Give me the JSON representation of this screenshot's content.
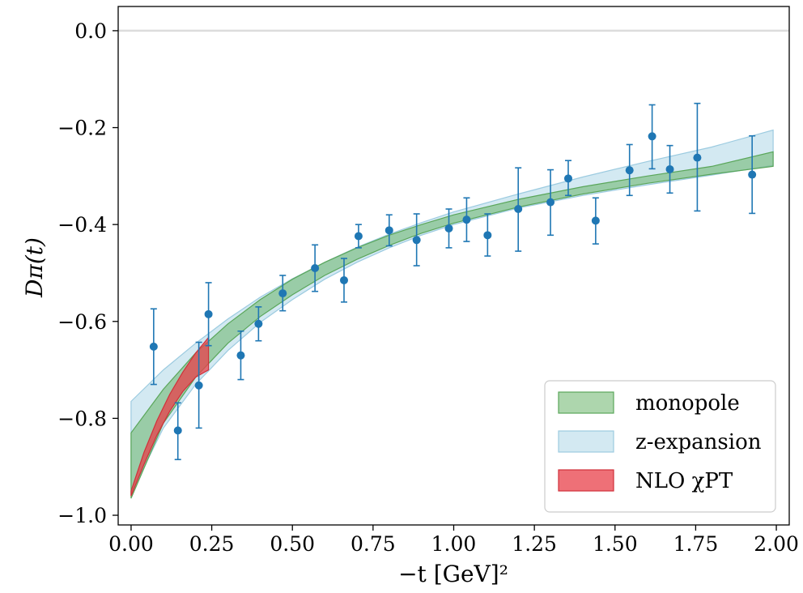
{
  "chart_data": {
    "type": "scatter",
    "xlabel": "−t [GeV]²",
    "ylabel": "Dπ(t)",
    "xlim": [
      -0.04,
      2.04
    ],
    "ylim": [
      -1.02,
      0.05
    ],
    "xticks": [
      "0.00",
      "0.25",
      "0.50",
      "0.75",
      "1.00",
      "1.25",
      "1.50",
      "1.75",
      "2.00"
    ],
    "xtick_values": [
      0,
      0.25,
      0.5,
      0.75,
      1.0,
      1.25,
      1.5,
      1.75,
      2.0
    ],
    "yticks": [
      "0.0",
      "−0.2",
      "−0.4",
      "−0.6",
      "−0.8",
      "−1.0"
    ],
    "ytick_values": [
      0.0,
      -0.2,
      -0.4,
      -0.6,
      -0.8,
      -1.0
    ],
    "reference_line": 0.0,
    "legend_position": "bottom-right",
    "colors": {
      "points": "#1f77b4",
      "monopole": "#6ab46a",
      "zexp": "#a8d4e6",
      "chipt": "#e8404a",
      "zero_line": "#dcdcdc"
    },
    "points": [
      {
        "x": 0.07,
        "y": -0.652,
        "lo": -0.73,
        "hi": -0.574
      },
      {
        "x": 0.145,
        "y": -0.825,
        "lo": -0.885,
        "hi": -0.768
      },
      {
        "x": 0.21,
        "y": -0.732,
        "lo": -0.82,
        "hi": -0.643
      },
      {
        "x": 0.24,
        "y": -0.585,
        "lo": -0.65,
        "hi": -0.52
      },
      {
        "x": 0.34,
        "y": -0.67,
        "lo": -0.72,
        "hi": -0.62
      },
      {
        "x": 0.395,
        "y": -0.605,
        "lo": -0.64,
        "hi": -0.57
      },
      {
        "x": 0.47,
        "y": -0.542,
        "lo": -0.578,
        "hi": -0.505
      },
      {
        "x": 0.57,
        "y": -0.49,
        "lo": -0.538,
        "hi": -0.442
      },
      {
        "x": 0.66,
        "y": -0.515,
        "lo": -0.56,
        "hi": -0.47
      },
      {
        "x": 0.705,
        "y": -0.424,
        "lo": -0.448,
        "hi": -0.4
      },
      {
        "x": 0.8,
        "y": -0.412,
        "lo": -0.444,
        "hi": -0.38
      },
      {
        "x": 0.885,
        "y": -0.432,
        "lo": -0.485,
        "hi": -0.378
      },
      {
        "x": 0.985,
        "y": -0.408,
        "lo": -0.448,
        "hi": -0.368
      },
      {
        "x": 1.04,
        "y": -0.39,
        "lo": -0.435,
        "hi": -0.345
      },
      {
        "x": 1.105,
        "y": -0.422,
        "lo": -0.465,
        "hi": -0.378
      },
      {
        "x": 1.2,
        "y": -0.368,
        "lo": -0.455,
        "hi": -0.283
      },
      {
        "x": 1.3,
        "y": -0.354,
        "lo": -0.422,
        "hi": -0.287
      },
      {
        "x": 1.355,
        "y": -0.305,
        "lo": -0.34,
        "hi": -0.268
      },
      {
        "x": 1.44,
        "y": -0.392,
        "lo": -0.44,
        "hi": -0.345
      },
      {
        "x": 1.545,
        "y": -0.288,
        "lo": -0.34,
        "hi": -0.235
      },
      {
        "x": 1.615,
        "y": -0.218,
        "lo": -0.285,
        "hi": -0.153
      },
      {
        "x": 1.67,
        "y": -0.286,
        "lo": -0.335,
        "hi": -0.237
      },
      {
        "x": 1.755,
        "y": -0.262,
        "lo": -0.372,
        "hi": -0.15
      },
      {
        "x": 1.925,
        "y": -0.297,
        "lo": -0.377,
        "hi": -0.217
      }
    ],
    "bands": [
      {
        "name": "monopole",
        "x": [
          0.0,
          0.1,
          0.2,
          0.3,
          0.4,
          0.5,
          0.6,
          0.7,
          0.8,
          0.9,
          1.0,
          1.2,
          1.4,
          1.6,
          1.8,
          1.99
        ],
        "upper": [
          -0.83,
          -0.74,
          -0.665,
          -0.605,
          -0.555,
          -0.513,
          -0.478,
          -0.448,
          -0.422,
          -0.4,
          -0.38,
          -0.348,
          -0.322,
          -0.3,
          -0.28,
          -0.25
        ],
        "lower": [
          -0.965,
          -0.81,
          -0.715,
          -0.645,
          -0.59,
          -0.545,
          -0.505,
          -0.472,
          -0.443,
          -0.418,
          -0.397,
          -0.364,
          -0.337,
          -0.315,
          -0.296,
          -0.28
        ]
      },
      {
        "name": "z-expansion",
        "x": [
          0.0,
          0.1,
          0.2,
          0.3,
          0.4,
          0.5,
          0.6,
          0.7,
          0.8,
          0.9,
          1.0,
          1.2,
          1.4,
          1.6,
          1.8,
          1.99
        ],
        "upper": [
          -0.765,
          -0.7,
          -0.645,
          -0.595,
          -0.55,
          -0.512,
          -0.478,
          -0.447,
          -0.42,
          -0.396,
          -0.374,
          -0.337,
          -0.302,
          -0.27,
          -0.24,
          -0.205
        ],
        "lower": [
          -0.955,
          -0.82,
          -0.73,
          -0.66,
          -0.602,
          -0.555,
          -0.513,
          -0.478,
          -0.448,
          -0.422,
          -0.4,
          -0.366,
          -0.34,
          -0.318,
          -0.298,
          -0.278
        ]
      },
      {
        "name": "NLO χPT",
        "x": [
          0.0,
          0.04,
          0.08,
          0.12,
          0.16,
          0.2,
          0.24
        ],
        "upper": [
          -0.95,
          -0.87,
          -0.805,
          -0.75,
          -0.705,
          -0.665,
          -0.633
        ],
        "lower": [
          -0.96,
          -0.895,
          -0.835,
          -0.785,
          -0.745,
          -0.715,
          -0.7
        ]
      }
    ],
    "legend": [
      {
        "label": "monopole",
        "band": "monopole"
      },
      {
        "label": "z-expansion",
        "band": "z-expansion"
      },
      {
        "label": "NLO χPT",
        "band": "NLO χPT"
      }
    ]
  }
}
